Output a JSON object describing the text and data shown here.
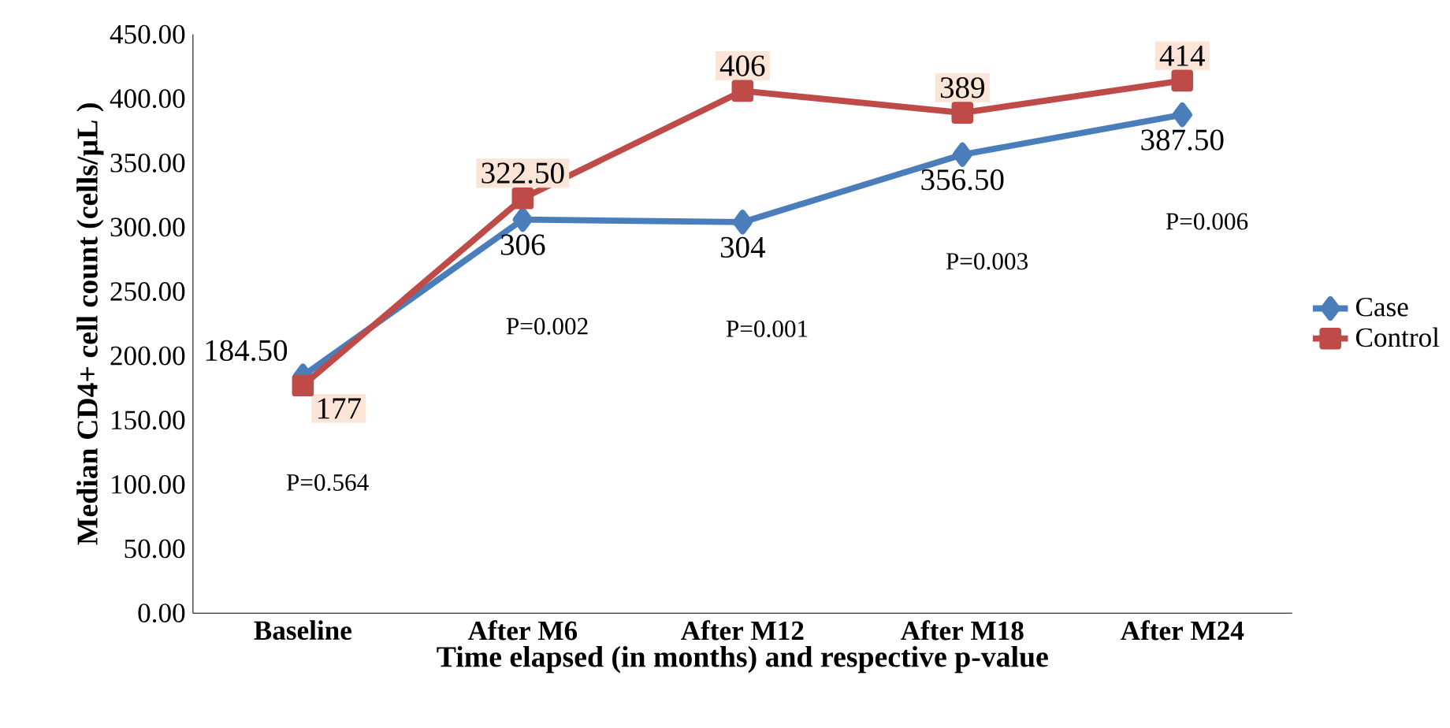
{
  "chart_data": {
    "type": "line",
    "xlabel": "Time elapsed (in months) and respective p-value",
    "ylabel": "Median CD4+ cell count (cells/µL )",
    "categories": [
      "Baseline",
      "After M6",
      "After M12",
      "After M18",
      "After M24"
    ],
    "series": [
      {
        "name": "Case",
        "color": "#4a7ebb",
        "marker": "diamond",
        "values": [
          184.5,
          306,
          304,
          356.5,
          387.5
        ],
        "value_labels": [
          "184.50",
          "306",
          "304",
          "356.50",
          "387.50"
        ]
      },
      {
        "name": "Control",
        "color": "#be4b48",
        "marker": "square",
        "values": [
          177,
          322.5,
          406,
          389,
          414
        ],
        "value_labels": [
          "177",
          "322.50",
          "406",
          "389",
          "414"
        ]
      }
    ],
    "ylim": [
      0,
      450
    ],
    "yticks": [
      {
        "value": 0,
        "label": "0.00"
      },
      {
        "value": 50,
        "label": "50.00"
      },
      {
        "value": 100,
        "label": "100.00"
      },
      {
        "value": 150,
        "label": "150.00"
      },
      {
        "value": 200,
        "label": "200.00"
      },
      {
        "value": 250,
        "label": "250.00"
      },
      {
        "value": 300,
        "label": "300.00"
      },
      {
        "value": 350,
        "label": "350.00"
      },
      {
        "value": 400,
        "label": "400.00"
      },
      {
        "value": 450,
        "label": "450.00"
      }
    ],
    "annotations": [
      "P=0.564",
      "P=0.002",
      "P=0.001",
      "P=0.003",
      "P=0.006"
    ],
    "grid": false,
    "legend": "right",
    "line_style": "solid"
  }
}
